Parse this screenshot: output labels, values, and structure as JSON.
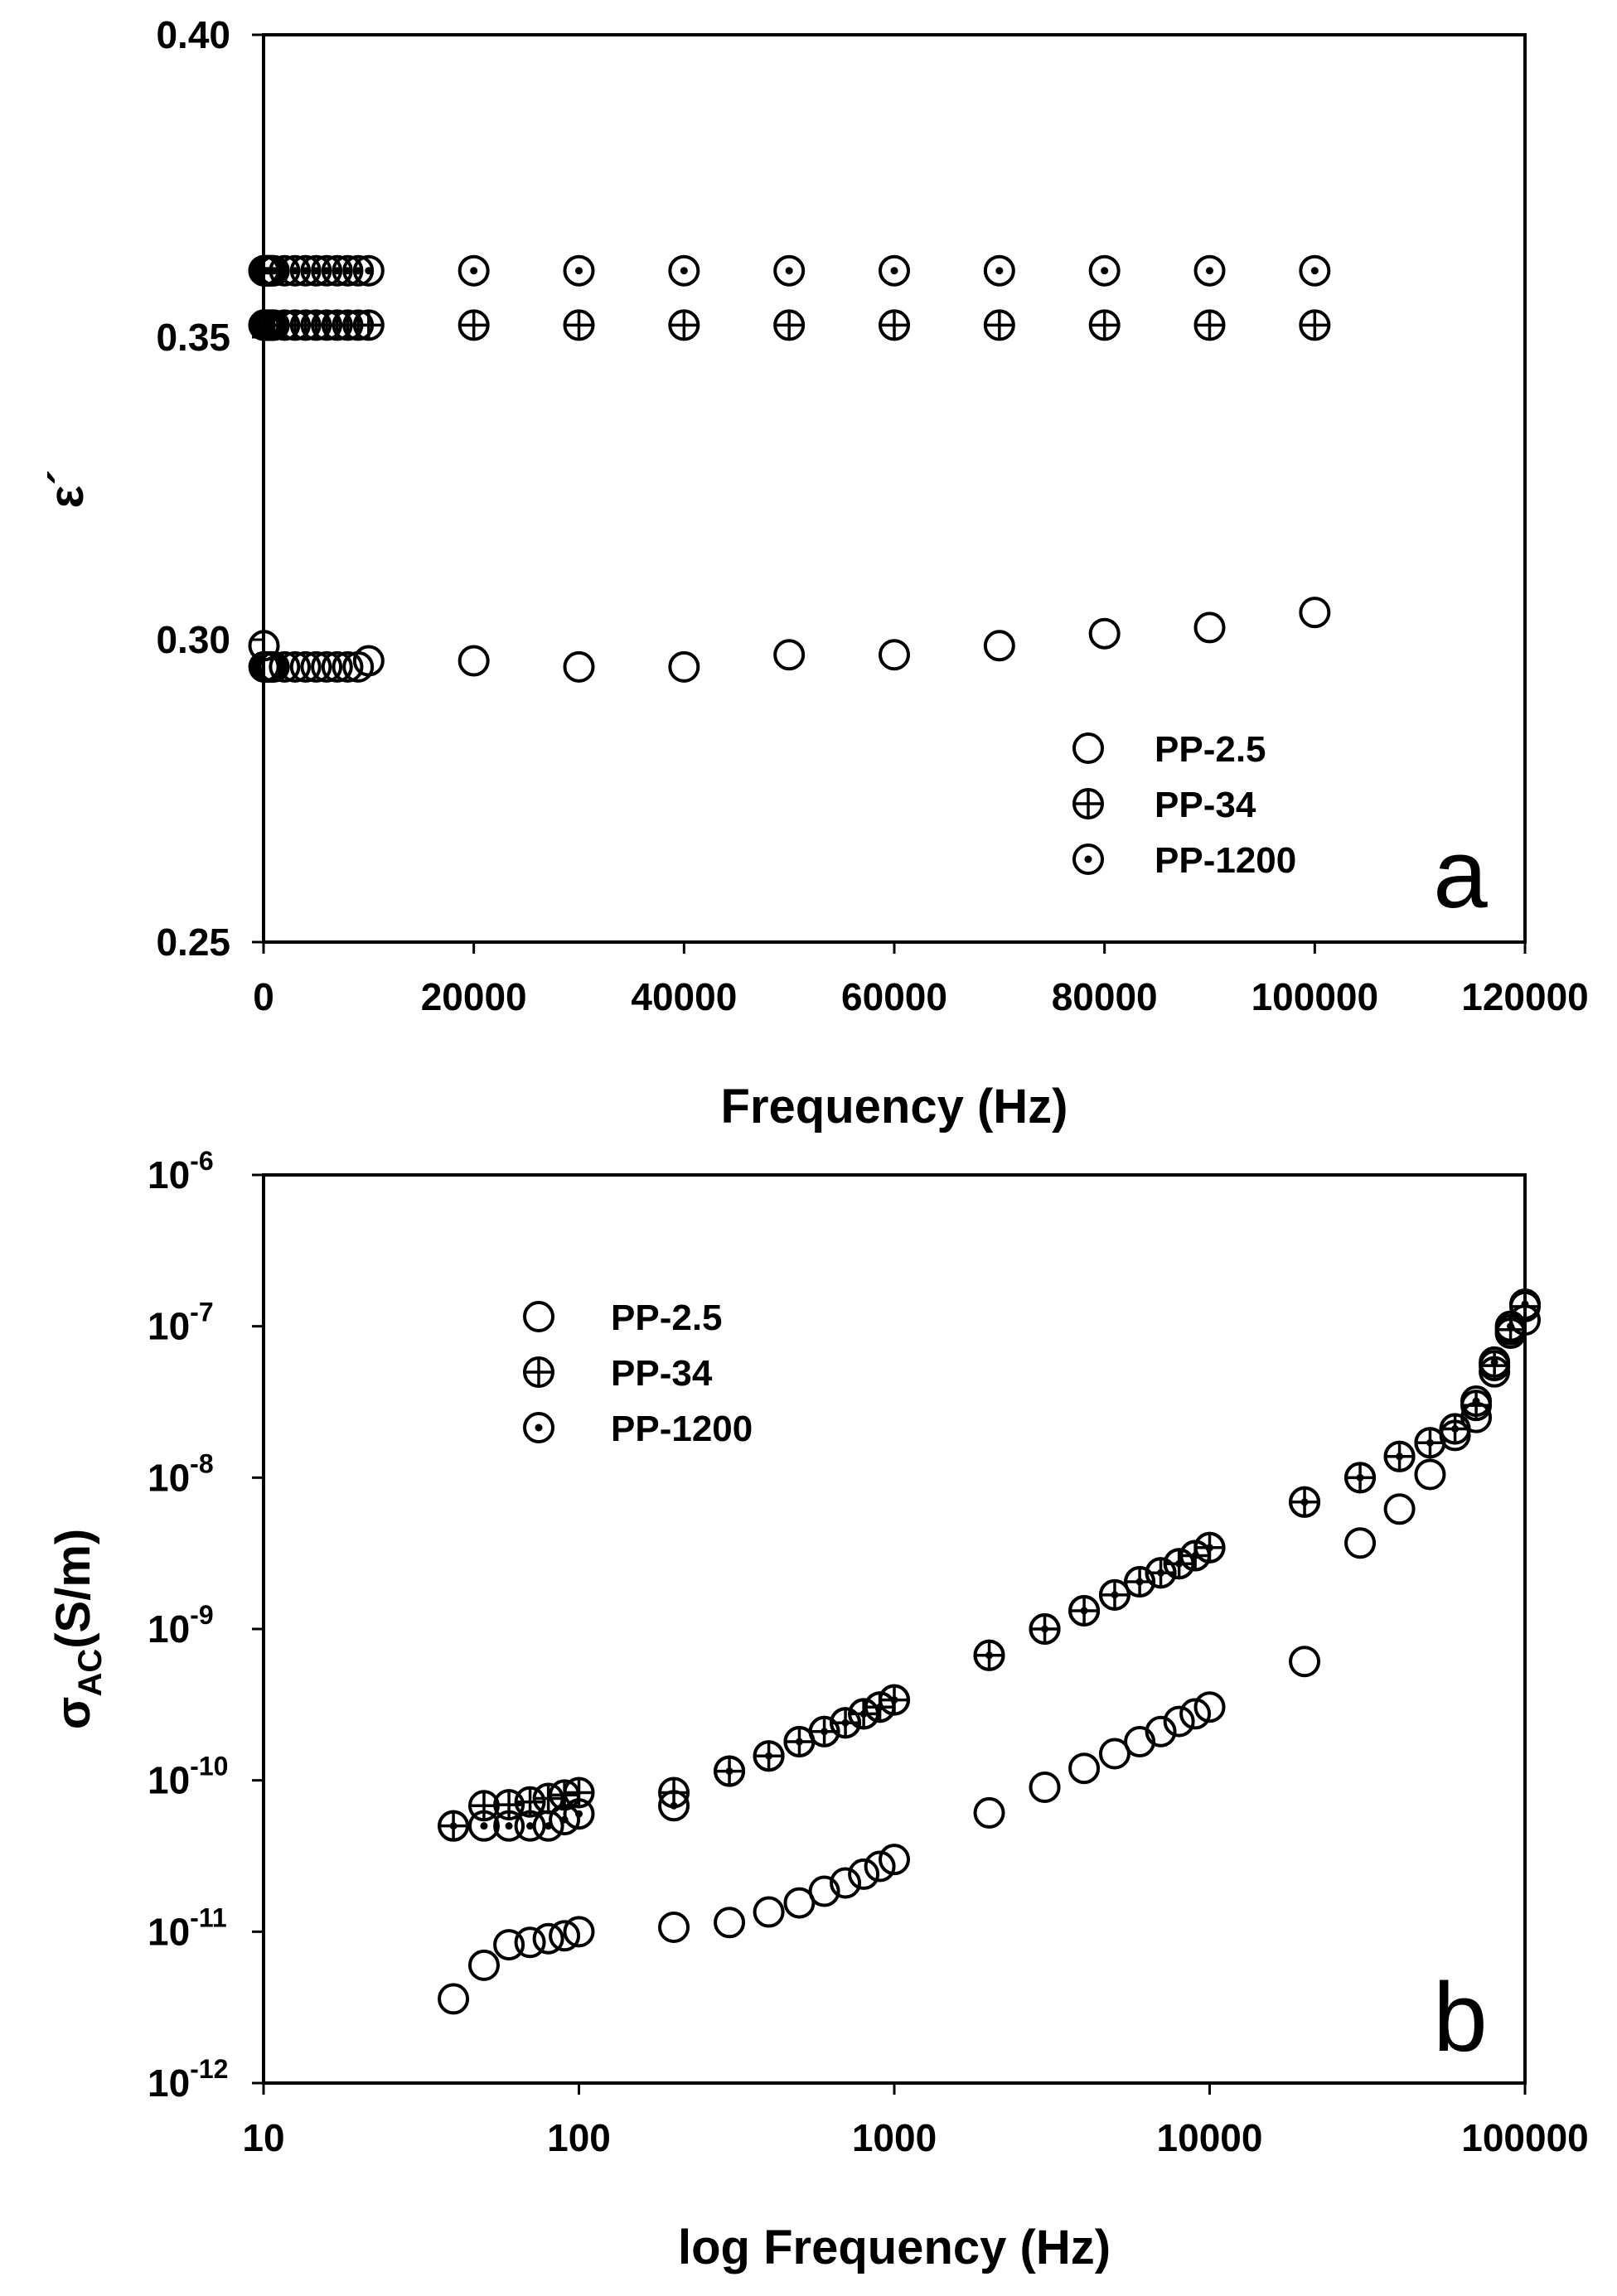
{
  "chart_data": [
    {
      "type": "scatter",
      "panel_label": "a",
      "xlabel": "Frequency (Hz)",
      "ylabel": "ε´",
      "xlim": [
        0,
        120000
      ],
      "ylim": [
        0.25,
        0.4
      ],
      "x_ticks": [
        "0",
        "20000",
        "40000",
        "60000",
        "80000",
        "100000",
        "120000"
      ],
      "y_ticks": [
        "0.25",
        "0.30",
        "0.35",
        "0.40"
      ],
      "legend_position": "bottom-right",
      "x": [
        40,
        50,
        60,
        70,
        80,
        90,
        100,
        200,
        300,
        400,
        500,
        600,
        700,
        800,
        900,
        1000,
        2000,
        3000,
        4000,
        5000,
        6000,
        7000,
        8000,
        9000,
        10000,
        20000,
        30000,
        40000,
        50000,
        60000,
        70000,
        80000,
        90000,
        100000
      ],
      "series": [
        {
          "name": "PP-2.5",
          "marker": "circle",
          "values": [
            0.299,
            0.2955,
            0.2955,
            0.2955,
            0.2955,
            0.2955,
            0.2955,
            0.2955,
            0.2955,
            0.2955,
            0.2955,
            0.2955,
            0.2955,
            0.2955,
            0.2955,
            0.2955,
            0.2955,
            0.2955,
            0.2955,
            0.2955,
            0.2955,
            0.2955,
            0.2955,
            0.2955,
            0.2965,
            0.2965,
            0.2955,
            0.2955,
            0.2975,
            0.2975,
            0.299,
            0.301,
            0.302,
            0.3045
          ]
        },
        {
          "name": "PP-34",
          "marker": "circle-plus",
          "values": [
            0.352,
            0.352,
            0.352,
            0.352,
            0.352,
            0.352,
            0.352,
            0.352,
            0.352,
            0.352,
            0.352,
            0.352,
            0.352,
            0.352,
            0.352,
            0.352,
            0.352,
            0.352,
            0.352,
            0.352,
            0.352,
            0.352,
            0.352,
            0.352,
            0.352,
            0.352,
            0.352,
            0.352,
            0.352,
            0.352,
            0.352,
            0.352,
            0.352,
            0.352
          ]
        },
        {
          "name": "PP-1200",
          "marker": "circle-dot",
          "values": [
            0.361,
            0.361,
            0.361,
            0.361,
            0.361,
            0.361,
            0.361,
            0.361,
            0.361,
            0.361,
            0.361,
            0.361,
            0.361,
            0.361,
            0.361,
            0.361,
            0.361,
            0.361,
            0.361,
            0.361,
            0.361,
            0.361,
            0.361,
            0.361,
            0.361,
            0.361,
            0.361,
            0.361,
            0.361,
            0.361,
            0.361,
            0.361,
            0.361,
            0.361
          ]
        }
      ]
    },
    {
      "type": "scatter",
      "panel_label": "b",
      "xlabel": "log Frequency (Hz)",
      "ylabel": "σAC(S/m)",
      "ylabel_main": "σ",
      "ylabel_sub": "AC",
      "ylabel_rest": "(S/m)",
      "x_scale": "log",
      "y_scale": "log",
      "xlim": [
        10,
        100000
      ],
      "ylim": [
        1e-12,
        1e-06
      ],
      "x_ticks": [
        "10",
        "100",
        "1000",
        "10000",
        "100000"
      ],
      "y_ticks": [
        {
          "base": "10",
          "exp": "-12"
        },
        {
          "base": "10",
          "exp": "-11"
        },
        {
          "base": "10",
          "exp": "-10"
        },
        {
          "base": "10",
          "exp": "-9"
        },
        {
          "base": "10",
          "exp": "-8"
        },
        {
          "base": "10",
          "exp": "-7"
        },
        {
          "base": "10",
          "exp": "-6"
        }
      ],
      "legend_position": "top-left",
      "x": [
        40,
        50,
        60,
        70,
        80,
        90,
        100,
        200,
        300,
        400,
        500,
        600,
        700,
        800,
        900,
        1000,
        2000,
        3000,
        4000,
        5000,
        6000,
        7000,
        8000,
        9000,
        10000,
        20000,
        30000,
        40000,
        50000,
        60000,
        70000,
        80000,
        90000,
        100000
      ],
      "series": [
        {
          "name": "PP-2.5",
          "marker": "circle",
          "values": [
            3.6e-12,
            6e-12,
            8.2e-12,
            8.5e-12,
            9e-12,
            9.4e-12,
            1e-11,
            1.07e-11,
            1.15e-11,
            1.35e-11,
            1.55e-11,
            1.85e-11,
            2.1e-11,
            2.4e-11,
            2.7e-11,
            3e-11,
            6.1e-11,
            9e-11,
            1.2e-10,
            1.5e-10,
            1.8e-10,
            2.1e-10,
            2.45e-10,
            2.75e-10,
            3.05e-10,
            6.1e-10,
            3.7e-09,
            6.2e-09,
            1.05e-08,
            1.9e-08,
            2.5e-08,
            5e-08,
            9e-08,
            1.1e-07
          ]
        },
        {
          "name": "PP-34",
          "marker": "circle-plus",
          "values": [
            5e-11,
            6.8e-11,
            6.9e-11,
            7.2e-11,
            7.6e-11,
            8e-11,
            8.3e-11,
            8.3e-11,
            1.15e-10,
            1.45e-10,
            1.8e-10,
            2.1e-10,
            2.4e-10,
            2.75e-10,
            3.05e-10,
            3.4e-10,
            6.7e-10,
            1e-09,
            1.32e-09,
            1.68e-09,
            2.05e-09,
            2.35e-09,
            2.7e-09,
            3.05e-09,
            3.45e-09,
            6.9e-09,
            1e-08,
            1.38e-08,
            1.7e-08,
            2.1e-08,
            3e-08,
            5.5e-08,
            9.5e-08,
            1.35e-07
          ]
        },
        {
          "name": "PP-1200",
          "marker": "circle-dot",
          "values": [
            5e-11,
            5e-11,
            5e-11,
            5e-11,
            5e-11,
            5.5e-11,
            6e-11,
            6.8e-11,
            1.15e-10,
            1.45e-10,
            1.8e-10,
            2.1e-10,
            2.4e-10,
            2.75e-10,
            3.05e-10,
            3.4e-10,
            6.7e-10,
            1e-09,
            1.32e-09,
            1.68e-09,
            2.05e-09,
            2.35e-09,
            2.7e-09,
            3.05e-09,
            3.45e-09,
            6.9e-09,
            1e-08,
            1.38e-08,
            1.7e-08,
            2.1e-08,
            3.2e-08,
            5.8e-08,
            1e-07,
            1.4e-07
          ]
        }
      ]
    }
  ]
}
